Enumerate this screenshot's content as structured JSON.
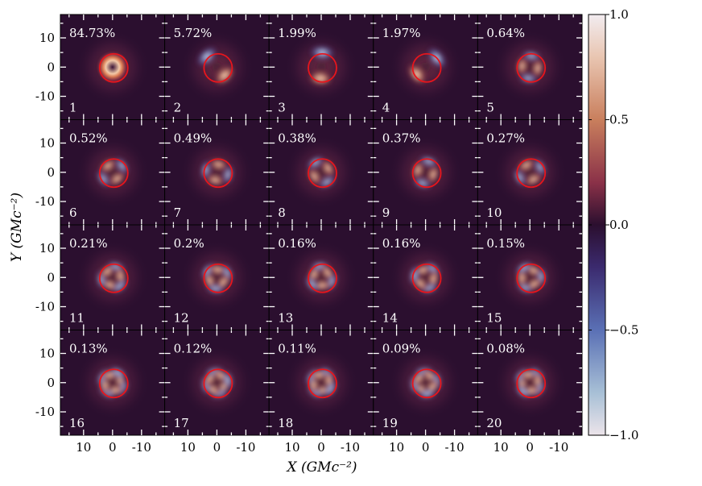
{
  "chart_data": {
    "type": "heatmap",
    "rows": 4,
    "cols": 5,
    "panels": [
      {
        "index": "1",
        "percent": "84.73%",
        "pattern": "ring"
      },
      {
        "index": "2",
        "percent": "5.72%",
        "pattern": "dipole"
      },
      {
        "index": "3",
        "percent": "1.99%",
        "pattern": "dipole"
      },
      {
        "index": "4",
        "percent": "1.97%",
        "pattern": "dipole"
      },
      {
        "index": "5",
        "percent": "0.64%",
        "pattern": "quad"
      },
      {
        "index": "6",
        "percent": "0.52%",
        "pattern": "spiral2"
      },
      {
        "index": "7",
        "percent": "0.49%",
        "pattern": "spiral2"
      },
      {
        "index": "8",
        "percent": "0.38%",
        "pattern": "spiral2"
      },
      {
        "index": "9",
        "percent": "0.37%",
        "pattern": "spiral2"
      },
      {
        "index": "10",
        "percent": "0.27%",
        "pattern": "spiral2"
      },
      {
        "index": "11",
        "percent": "0.21%",
        "pattern": "spiral3"
      },
      {
        "index": "12",
        "percent": "0.2%",
        "pattern": "spiral3"
      },
      {
        "index": "13",
        "percent": "0.16%",
        "pattern": "spiral3"
      },
      {
        "index": "14",
        "percent": "0.16%",
        "pattern": "spiral3"
      },
      {
        "index": "15",
        "percent": "0.15%",
        "pattern": "spiral3"
      },
      {
        "index": "16",
        "percent": "0.13%",
        "pattern": "spiral4"
      },
      {
        "index": "17",
        "percent": "0.12%",
        "pattern": "spiral4"
      },
      {
        "index": "18",
        "percent": "0.11%",
        "pattern": "spiral4"
      },
      {
        "index": "19",
        "percent": "0.09%",
        "pattern": "spiral4"
      },
      {
        "index": "20",
        "percent": "0.08%",
        "pattern": "spiral4"
      }
    ],
    "xlabel": "X (GMc⁻²)",
    "ylabel": "Y (GMc⁻²)",
    "x_ticks": [
      "10",
      "0",
      "-10"
    ],
    "y_ticks": [
      "10",
      "0",
      "-10"
    ],
    "xlim": [
      18,
      -18
    ],
    "ylim": [
      -18,
      18
    ],
    "colorbar": {
      "range": [
        -1.0,
        1.0
      ],
      "ticks": [
        "1.0",
        "0.5",
        "0.0",
        "−0.5",
        "−1.0"
      ],
      "colors": [
        "#ece4ea",
        "#c97f5d",
        "#2b0f2f",
        "#5a70b5",
        "#ece4ea"
      ]
    },
    "overlay_circle_color": "#e8151c",
    "background_color": "#2b0f2f"
  }
}
